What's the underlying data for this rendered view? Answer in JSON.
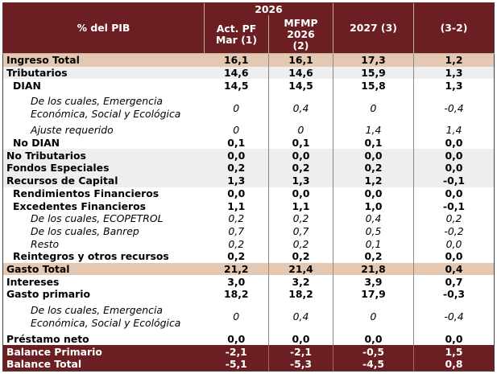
{
  "header": {
    "row_label": "% del PIB",
    "year_2026": "2026",
    "col1": "Act. PF Mar (1)",
    "col2": "MFMP 2026 (2)",
    "col3": "2027 (3)",
    "col4": "(3-2)"
  },
  "rows": [
    {
      "label": "Ingreso Total",
      "v": [
        "16,1",
        "16,1",
        "17,3",
        "1,2"
      ]
    },
    {
      "label": "Tributarios",
      "v": [
        "14,6",
        "14,6",
        "15,9",
        "1,3"
      ]
    },
    {
      "label": "DIAN",
      "v": [
        "14,5",
        "14,5",
        "15,8",
        "1,3"
      ]
    },
    {
      "label": "De los cuales, Emergencia Económica, Social y Ecológica",
      "v": [
        "0",
        "0,4",
        "0",
        "-0,4"
      ]
    },
    {
      "label": "Ajuste requerido",
      "v": [
        "0",
        "0",
        "1,4",
        "1,4"
      ]
    },
    {
      "label": "No DIAN",
      "v": [
        "0,1",
        "0,1",
        "0,1",
        "0,0"
      ]
    },
    {
      "label": "No Tributarios",
      "v": [
        "0,0",
        "0,0",
        "0,0",
        "0,0"
      ]
    },
    {
      "label": "Fondos Especiales",
      "v": [
        "0,2",
        "0,2",
        "0,2",
        "0,0"
      ]
    },
    {
      "label": "Recursos de Capital",
      "v": [
        "1,3",
        "1,3",
        "1,2",
        "-0,1"
      ]
    },
    {
      "label": "Rendimientos Financieros",
      "v": [
        "0,0",
        "0,0",
        "0,0",
        "0,0"
      ]
    },
    {
      "label": "Excedentes Financieros",
      "v": [
        "1,1",
        "1,1",
        "1,0",
        "-0,1"
      ]
    },
    {
      "label": "De los cuales, ECOPETROL",
      "v": [
        "0,2",
        "0,2",
        "0,4",
        "0,2"
      ]
    },
    {
      "label": "De los cuales, Banrep",
      "v": [
        "0,7",
        "0,7",
        "0,5",
        "-0,2"
      ]
    },
    {
      "label": "Resto",
      "v": [
        "0,2",
        "0,2",
        "0,1",
        "0,0"
      ]
    },
    {
      "label": "Reintegros y otros recursos",
      "v": [
        "0,2",
        "0,2",
        "0,2",
        "0,0"
      ]
    },
    {
      "label": "Gasto Total",
      "v": [
        "21,2",
        "21,4",
        "21,8",
        "0,4"
      ]
    },
    {
      "label": "Intereses",
      "v": [
        "3,0",
        "3,2",
        "3,9",
        "0,7"
      ]
    },
    {
      "label": "Gasto primario",
      "v": [
        "18,2",
        "18,2",
        "17,9",
        "-0,3"
      ]
    },
    {
      "label": "De los cuales, Emergencia Económica, Social y Ecológica",
      "v": [
        "0",
        "0,4",
        "0",
        "-0,4"
      ]
    },
    {
      "label": "Préstamo neto",
      "v": [
        "0,0",
        "0,0",
        "0,0",
        "0,0"
      ]
    },
    {
      "label": "Balance Primario",
      "v": [
        "-2,1",
        "-2,1",
        "-0,5",
        "1,5"
      ]
    },
    {
      "label": "Balance Total",
      "v": [
        "-5,1",
        "-5,3",
        "-4,5",
        "0,8"
      ]
    }
  ],
  "colors": {
    "header_bg": "#6b1f23",
    "highlight_bg": "#e5c8b1",
    "stripe_bg": "#eeeeee"
  }
}
